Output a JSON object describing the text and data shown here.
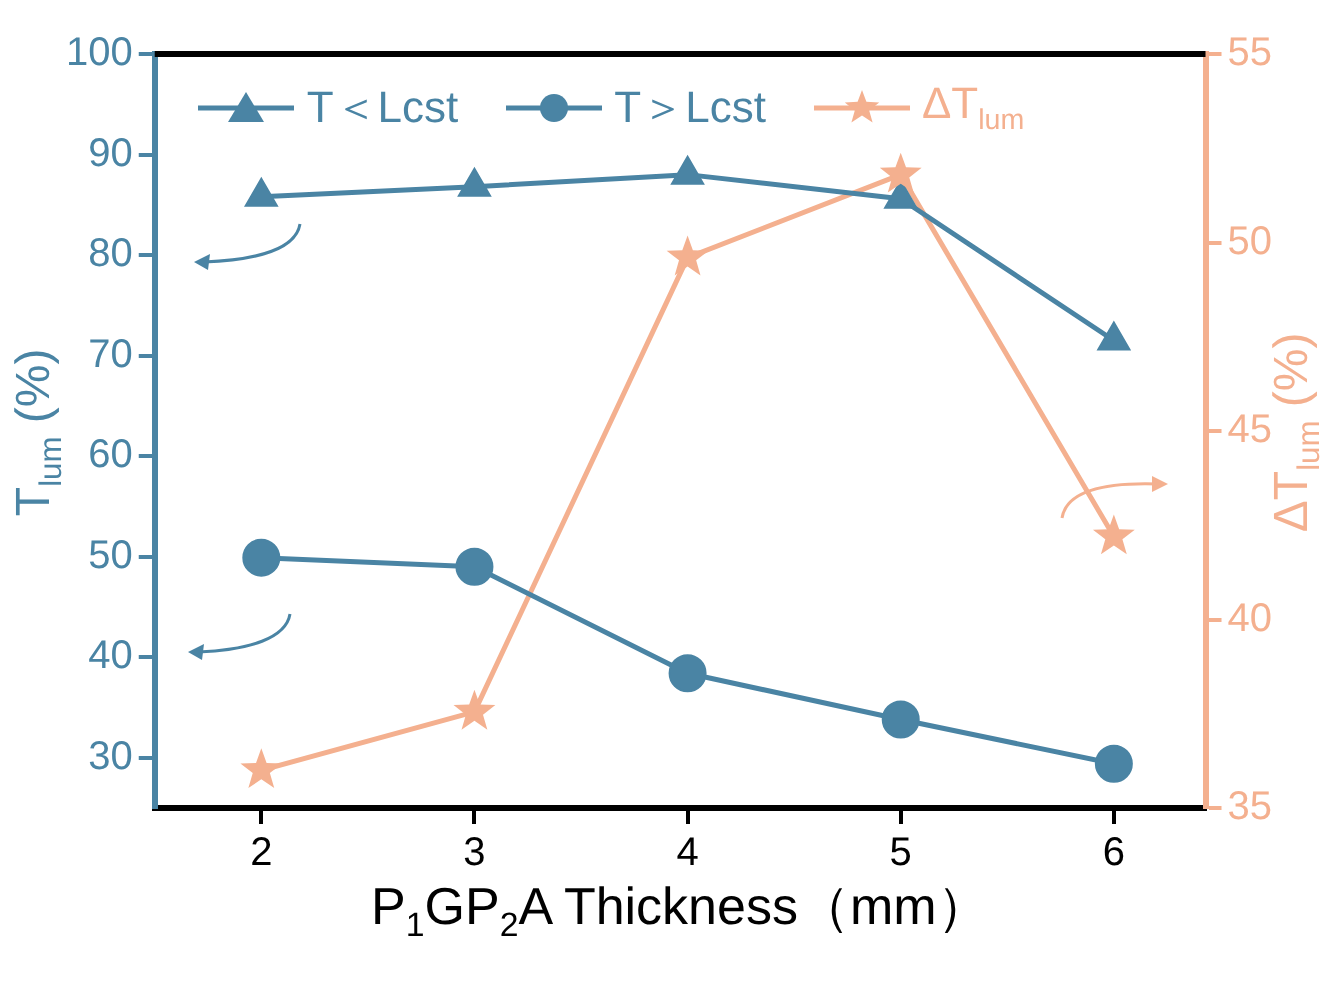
{
  "chart_data": {
    "type": "line",
    "xlabel": "P$_{1}$GP$_{2}$A Thickness（mm）",
    "ylabel": "T$_{lum}$ (%)",
    "y2label": "ΔT$_{lum}$ (%)",
    "x": [
      2,
      3,
      4,
      5,
      6
    ],
    "xlim": [
      1.5,
      6.43
    ],
    "xticks": [
      2,
      3,
      4,
      5,
      6
    ],
    "ylim": [
      25,
      100
    ],
    "yticks": [
      30,
      40,
      50,
      60,
      70,
      80,
      90,
      100
    ],
    "y2lim": [
      35,
      55
    ],
    "y2ticks": [
      35,
      40,
      45,
      50,
      55
    ],
    "series": [
      {
        "name": "T＜Lcst",
        "color": "#4a84a4",
        "marker": "triangle",
        "values": [
          85.8,
          86.8,
          88.0,
          85.6,
          71.5
        ]
      },
      {
        "name": "T＞Lcst",
        "color": "#4a84a4",
        "marker": "circle",
        "values": [
          49.9,
          49.0,
          38.4,
          33.8,
          29.4
        ]
      },
      {
        "name": "ΔT$_{lum}$",
        "color": "#f4b08f",
        "marker": "star",
        "axis": "y2",
        "values": [
          36.0,
          37.55,
          49.6,
          51.8,
          42.2
        ]
      }
    ],
    "grid": false,
    "legend": "top",
    "line_style": "solid"
  }
}
